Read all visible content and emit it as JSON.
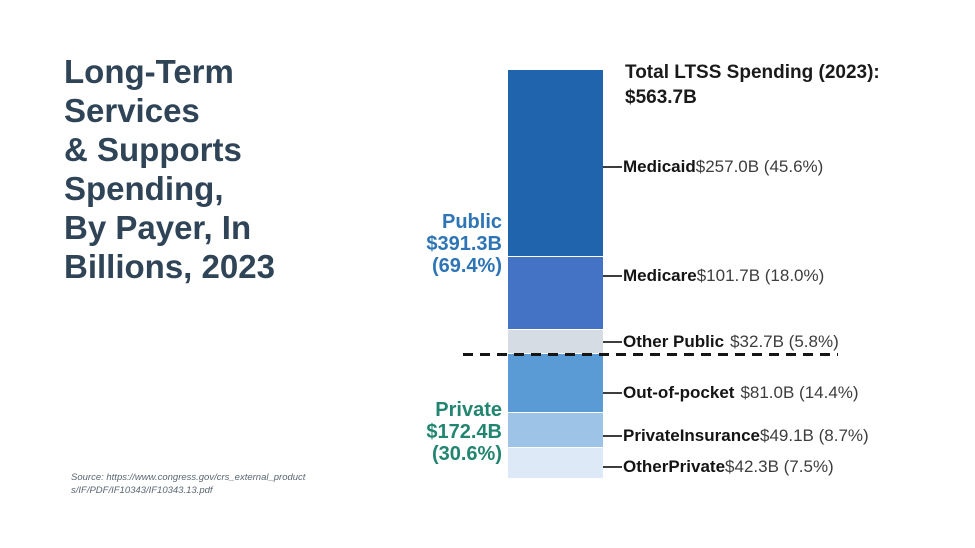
{
  "slide": {
    "title_lines": [
      "Long-Term",
      "Services",
      "& Supports",
      "Spending,",
      "By Payer, In",
      "Billions, 2023"
    ],
    "source_line1": "Source: https://www.congress.gov/crs_external_product",
    "source_line2": "s/IF/PDF/IF10343/IF10343.13.pdf"
  },
  "chart_data": {
    "type": "bar",
    "stacked": true,
    "orientation": "vertical-single-stack",
    "title": "Total LTSS Spending (2023):",
    "title_value": "$563.7B",
    "units": "billions USD",
    "total_billions": 563.7,
    "legend_position": "right-callouts",
    "grid": false,
    "segments": [
      {
        "name": "Medicaid",
        "billions": 257.0,
        "percent": 45.6,
        "value_label": "$257.0B (45.6%)",
        "color": "#2064AE",
        "group": "Public",
        "space_before_value": false
      },
      {
        "name": "Medicare",
        "billions": 101.7,
        "percent": 18.0,
        "value_label": "$101.7B (18.0%)",
        "color": "#4472C4",
        "group": "Public",
        "space_before_value": false
      },
      {
        "name": "Other Public",
        "billions": 32.7,
        "percent": 5.8,
        "value_label": "$32.7B (5.8%)",
        "color": "#D6DCE4",
        "group": "Public",
        "space_before_value": true
      },
      {
        "name": "Out-of-pocket",
        "billions": 81.0,
        "percent": 14.4,
        "value_label": "$81.0B (14.4%)",
        "color": "#5B9BD5",
        "group": "Private",
        "space_before_value": true
      },
      {
        "name": "PrivateInsurance",
        "billions": 49.1,
        "percent": 8.7,
        "value_label": "$49.1B (8.7%)",
        "color": "#9DC3E6",
        "group": "Private",
        "space_before_value": false
      },
      {
        "name": "OtherPrivate",
        "billions": 42.3,
        "percent": 7.5,
        "value_label": "$42.3B (7.5%)",
        "color": "#DDE9F6",
        "group": "Private",
        "space_before_value": false
      }
    ],
    "groups": [
      {
        "name": "Public",
        "amount": "$391.3B",
        "percent": "(69.4%)",
        "color": "#2E75B6"
      },
      {
        "name": "Private",
        "amount": "$172.4B",
        "percent": "(30.6%)",
        "color": "#218570"
      }
    ],
    "divider": "dashed horizontal line separating Public and Private segments"
  }
}
